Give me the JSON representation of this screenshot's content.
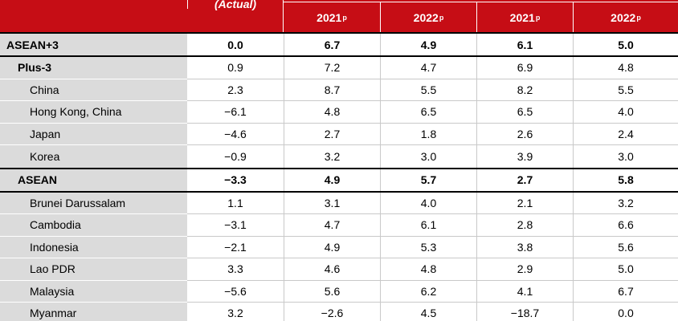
{
  "chart_data": {
    "type": "table",
    "columns": [
      "(Actual)",
      "2021p",
      "2022p",
      "2021p",
      "2022p"
    ],
    "rows": [
      {
        "label": "ASEAN+3",
        "values": [
          0.0,
          6.7,
          4.9,
          6.1,
          5.0
        ]
      },
      {
        "label": "Plus-3",
        "values": [
          0.9,
          7.2,
          4.7,
          6.9,
          4.8
        ]
      },
      {
        "label": "China",
        "values": [
          2.3,
          8.7,
          5.5,
          8.2,
          5.5
        ]
      },
      {
        "label": "Hong Kong, China",
        "values": [
          -6.1,
          4.8,
          6.5,
          6.5,
          4.0
        ]
      },
      {
        "label": "Japan",
        "values": [
          -4.6,
          2.7,
          1.8,
          2.6,
          2.4
        ]
      },
      {
        "label": "Korea",
        "values": [
          -0.9,
          3.2,
          3.0,
          3.9,
          3.0
        ]
      },
      {
        "label": "ASEAN",
        "values": [
          -3.3,
          4.9,
          5.7,
          2.7,
          5.8
        ]
      },
      {
        "label": "Brunei Darussalam",
        "values": [
          1.1,
          3.1,
          4.0,
          2.1,
          3.2
        ]
      },
      {
        "label": "Cambodia",
        "values": [
          -3.1,
          4.7,
          6.1,
          2.8,
          6.6
        ]
      },
      {
        "label": "Indonesia",
        "values": [
          -2.1,
          4.9,
          5.3,
          3.8,
          5.6
        ]
      },
      {
        "label": "Lao PDR",
        "values": [
          3.3,
          4.6,
          4.8,
          2.9,
          5.0
        ]
      },
      {
        "label": "Malaysia",
        "values": [
          -5.6,
          5.6,
          6.2,
          4.1,
          6.7
        ]
      },
      {
        "label": "Myanmar",
        "values": [
          3.2,
          -2.6,
          4.5,
          -18.7,
          0.0
        ]
      }
    ]
  },
  "table": {
    "header": {
      "actual_label": "(Actual)",
      "year_cols": [
        {
          "year": "2021",
          "sup": "p"
        },
        {
          "year": "2022",
          "sup": "p"
        },
        {
          "year": "2021",
          "sup": "p"
        },
        {
          "year": "2022",
          "sup": "p"
        }
      ]
    },
    "rows": [
      {
        "label": "ASEAN+3",
        "values": [
          "0.0",
          "6.7",
          "4.9",
          "6.1",
          "5.0"
        ]
      },
      {
        "label": "Plus-3",
        "values": [
          "0.9",
          "7.2",
          "4.7",
          "6.9",
          "4.8"
        ]
      },
      {
        "label": "China",
        "values": [
          "2.3",
          "8.7",
          "5.5",
          "8.2",
          "5.5"
        ]
      },
      {
        "label": "Hong Kong, China",
        "values": [
          "−6.1",
          "4.8",
          "6.5",
          "6.5",
          "4.0"
        ]
      },
      {
        "label": "Japan",
        "values": [
          "−4.6",
          "2.7",
          "1.8",
          "2.6",
          "2.4"
        ]
      },
      {
        "label": "Korea",
        "values": [
          "−0.9",
          "3.2",
          "3.0",
          "3.9",
          "3.0"
        ]
      },
      {
        "label": "ASEAN",
        "values": [
          "−3.3",
          "4.9",
          "5.7",
          "2.7",
          "5.8"
        ]
      },
      {
        "label": "Brunei Darussalam",
        "values": [
          "1.1",
          "3.1",
          "4.0",
          "2.1",
          "3.2"
        ]
      },
      {
        "label": "Cambodia",
        "values": [
          "−3.1",
          "4.7",
          "6.1",
          "2.8",
          "6.6"
        ]
      },
      {
        "label": "Indonesia",
        "values": [
          "−2.1",
          "4.9",
          "5.3",
          "3.8",
          "5.6"
        ]
      },
      {
        "label": "Lao PDR",
        "values": [
          "3.3",
          "4.6",
          "4.8",
          "2.9",
          "5.0"
        ]
      },
      {
        "label": "Malaysia",
        "values": [
          "−5.6",
          "5.6",
          "6.2",
          "4.1",
          "6.7"
        ]
      },
      {
        "label": "Myanmar",
        "values": [
          "3.2",
          "−2.6",
          "4.5",
          "−18.7",
          "0.0"
        ]
      }
    ]
  },
  "colors": {
    "header_red": "#C60D15",
    "label_gray": "#DBDBDB",
    "grid_gray": "#C9C9C9",
    "rule_black": "#000000",
    "header_text": "#FFFFFF"
  }
}
